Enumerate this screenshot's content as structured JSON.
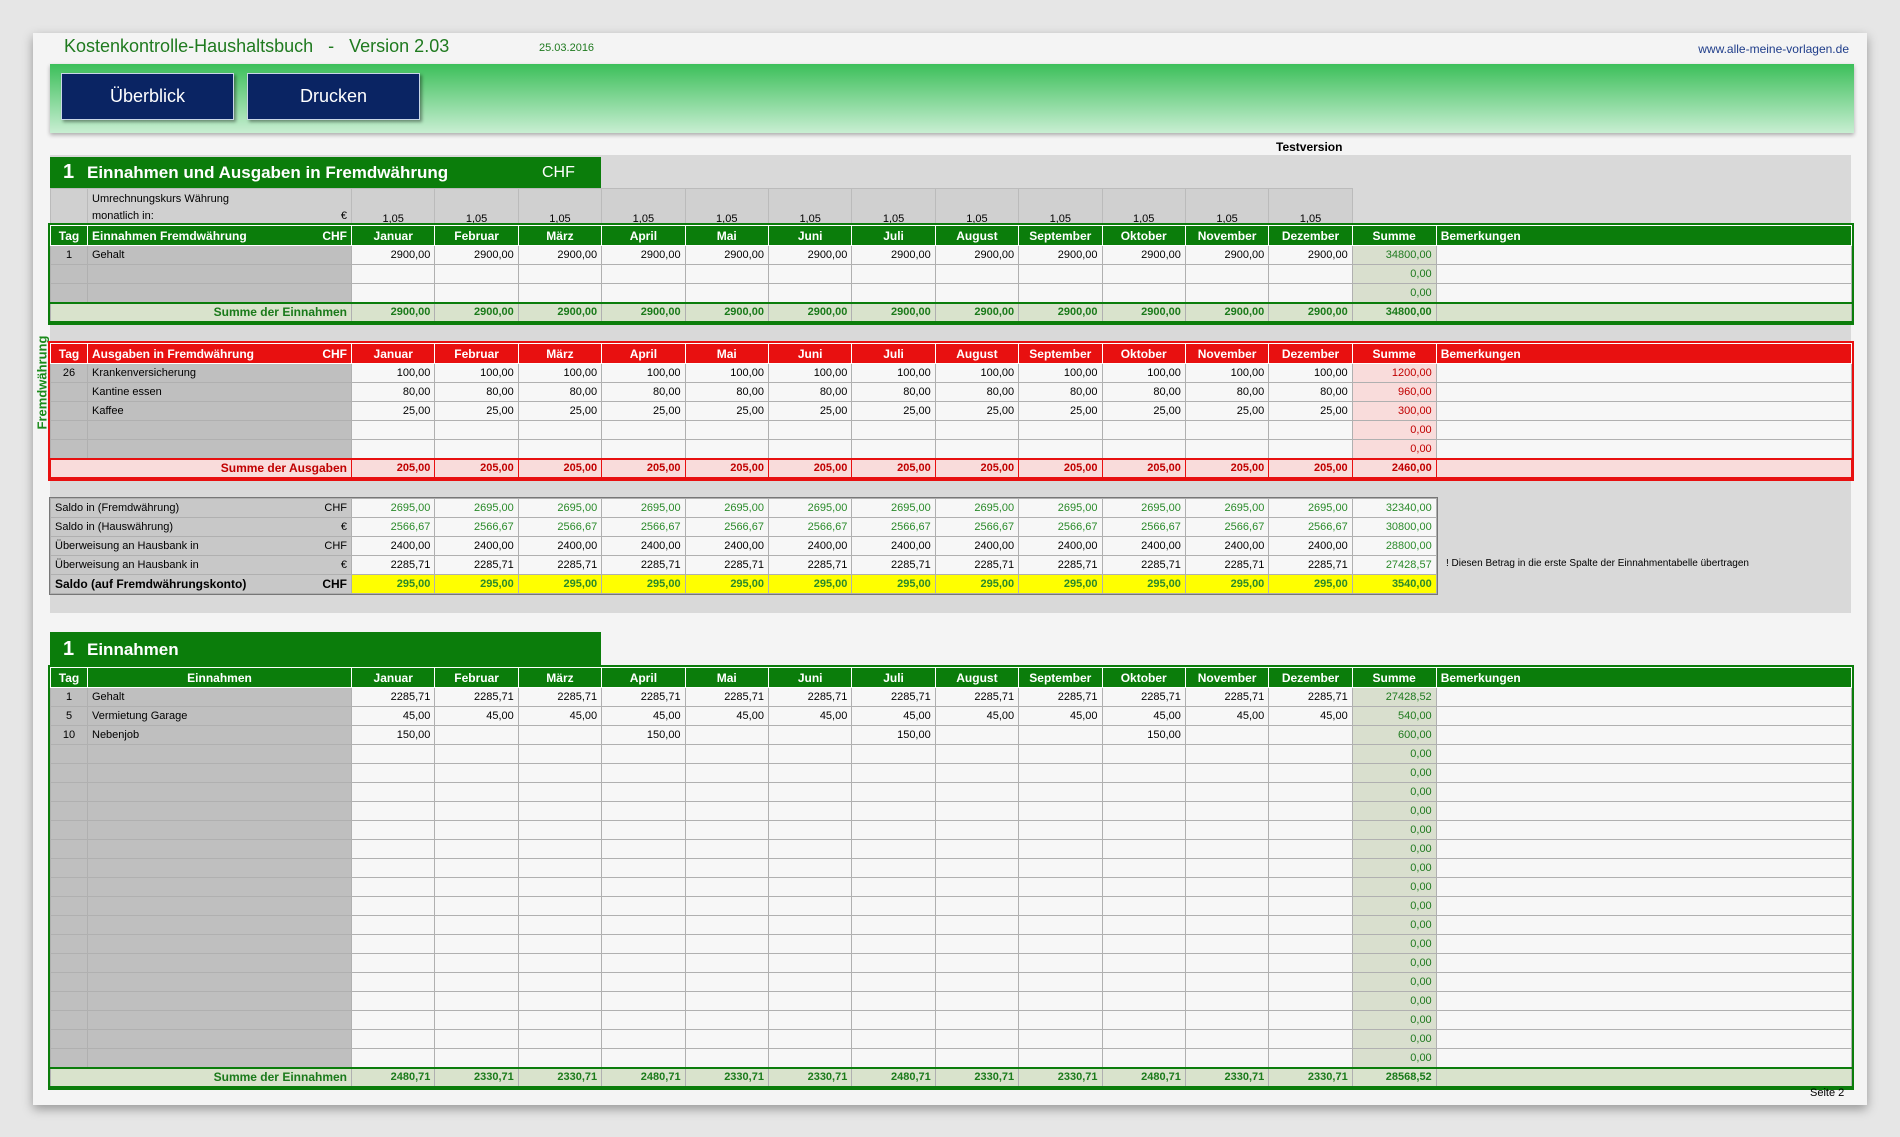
{
  "header": {
    "title": "Kostenkontrolle-Haushaltsbuch   -   Version 2.03",
    "date": "25.03.2016",
    "url": "www.alle-meine-vorlagen.de",
    "buttons": [
      "Überblick",
      "Drucken"
    ],
    "testversion": "Testversion"
  },
  "colors": {
    "green": "#0b7d0b",
    "red": "#e81010",
    "yellow": "#ffff00",
    "navy": "#0a2463"
  },
  "months": [
    "Januar",
    "Februar",
    "März",
    "April",
    "Mai",
    "Juni",
    "Juli",
    "August",
    "September",
    "Oktober",
    "November",
    "Dezember"
  ],
  "summe_label": "Summe",
  "bemerkungen_label": "Bemerkungen",
  "tag_label": "Tag",
  "section1": {
    "number": "1",
    "title": "Einnahmen und Ausgaben in Fremdwährung",
    "currency": "CHF",
    "side_label": "Fremdwährung",
    "rate": {
      "label1": "Umrechnungskurs Währung",
      "label2": "monatlich in:",
      "unit": "€",
      "values": [
        "1,05",
        "1,05",
        "1,05",
        "1,05",
        "1,05",
        "1,05",
        "1,05",
        "1,05",
        "1,05",
        "1,05",
        "1,05",
        "1,05"
      ]
    },
    "income": {
      "title": "Einnahmen Fremdwährung",
      "unit": "CHF",
      "rows": [
        {
          "tag": "1",
          "name": "Gehalt",
          "values": [
            "2900,00",
            "2900,00",
            "2900,00",
            "2900,00",
            "2900,00",
            "2900,00",
            "2900,00",
            "2900,00",
            "2900,00",
            "2900,00",
            "2900,00",
            "2900,00"
          ],
          "sum": "34800,00"
        },
        {
          "tag": "",
          "name": "",
          "values": [],
          "sum": "0,00"
        },
        {
          "tag": "",
          "name": "",
          "values": [],
          "sum": "0,00"
        }
      ],
      "total": {
        "label": "Summe der Einnahmen",
        "values": [
          "2900,00",
          "2900,00",
          "2900,00",
          "2900,00",
          "2900,00",
          "2900,00",
          "2900,00",
          "2900,00",
          "2900,00",
          "2900,00",
          "2900,00",
          "2900,00"
        ],
        "sum": "34800,00"
      }
    },
    "expenses": {
      "title": "Ausgaben in Fremdwährung",
      "unit": "CHF",
      "rows": [
        {
          "tag": "26",
          "name": "Krankenversicherung",
          "values": [
            "100,00",
            "100,00",
            "100,00",
            "100,00",
            "100,00",
            "100,00",
            "100,00",
            "100,00",
            "100,00",
            "100,00",
            "100,00",
            "100,00"
          ],
          "sum": "1200,00"
        },
        {
          "tag": "",
          "name": "Kantine essen",
          "values": [
            "80,00",
            "80,00",
            "80,00",
            "80,00",
            "80,00",
            "80,00",
            "80,00",
            "80,00",
            "80,00",
            "80,00",
            "80,00",
            "80,00"
          ],
          "sum": "960,00"
        },
        {
          "tag": "",
          "name": "Kaffee",
          "values": [
            "25,00",
            "25,00",
            "25,00",
            "25,00",
            "25,00",
            "25,00",
            "25,00",
            "25,00",
            "25,00",
            "25,00",
            "25,00",
            "25,00"
          ],
          "sum": "300,00"
        },
        {
          "tag": "",
          "name": "",
          "values": [],
          "sum": "0,00"
        },
        {
          "tag": "",
          "name": "",
          "values": [],
          "sum": "0,00"
        }
      ],
      "total": {
        "label": "Summe der Ausgaben",
        "values": [
          "205,00",
          "205,00",
          "205,00",
          "205,00",
          "205,00",
          "205,00",
          "205,00",
          "205,00",
          "205,00",
          "205,00",
          "205,00",
          "205,00"
        ],
        "sum": "2460,00"
      }
    },
    "saldo": [
      {
        "name": "Saldo in (Fremdwährung)",
        "unit": "CHF",
        "values": [
          "2695,00",
          "2695,00",
          "2695,00",
          "2695,00",
          "2695,00",
          "2695,00",
          "2695,00",
          "2695,00",
          "2695,00",
          "2695,00",
          "2695,00",
          "2695,00"
        ],
        "sum": "32340,00"
      },
      {
        "name": "Saldo in (Hauswährung)",
        "unit": "€",
        "values": [
          "2566,67",
          "2566,67",
          "2566,67",
          "2566,67",
          "2566,67",
          "2566,67",
          "2566,67",
          "2566,67",
          "2566,67",
          "2566,67",
          "2566,67",
          "2566,67"
        ],
        "sum": "30800,00"
      },
      {
        "name": "Überweisung an Hausbank in",
        "unit": "CHF",
        "values": [
          "2400,00",
          "2400,00",
          "2400,00",
          "2400,00",
          "2400,00",
          "2400,00",
          "2400,00",
          "2400,00",
          "2400,00",
          "2400,00",
          "2400,00",
          "2400,00"
        ],
        "sum": "28800,00"
      },
      {
        "name": "Überweisung an Hausbank in",
        "unit": "€",
        "values": [
          "2285,71",
          "2285,71",
          "2285,71",
          "2285,71",
          "2285,71",
          "2285,71",
          "2285,71",
          "2285,71",
          "2285,71",
          "2285,71",
          "2285,71",
          "2285,71"
        ],
        "sum": "27428,57"
      },
      {
        "name": "Saldo (auf Fremdwährungskonto)",
        "unit": "CHF",
        "values": [
          "295,00",
          "295,00",
          "295,00",
          "295,00",
          "295,00",
          "295,00",
          "295,00",
          "295,00",
          "295,00",
          "295,00",
          "295,00",
          "295,00"
        ],
        "sum": "3540,00"
      }
    ],
    "note": "! Diesen Betrag in die erste Spalte der Einnahmentabelle übertragen"
  },
  "section2": {
    "number": "1",
    "title": "Einnahmen",
    "col_title": "Einnahmen",
    "rows": [
      {
        "tag": "1",
        "name": "Gehalt",
        "values": [
          "2285,71",
          "2285,71",
          "2285,71",
          "2285,71",
          "2285,71",
          "2285,71",
          "2285,71",
          "2285,71",
          "2285,71",
          "2285,71",
          "2285,71",
          "2285,71"
        ],
        "sum": "27428,52"
      },
      {
        "tag": "5",
        "name": "Vermietung Garage",
        "values": [
          "45,00",
          "45,00",
          "45,00",
          "45,00",
          "45,00",
          "45,00",
          "45,00",
          "45,00",
          "45,00",
          "45,00",
          "45,00",
          "45,00"
        ],
        "sum": "540,00"
      },
      {
        "tag": "10",
        "name": "Nebenjob",
        "values": [
          "150,00",
          "",
          "",
          "150,00",
          "",
          "",
          "150,00",
          "",
          "",
          "150,00",
          "",
          ""
        ],
        "sum": "600,00"
      },
      {
        "tag": "",
        "name": "",
        "values": [],
        "sum": "0,00"
      },
      {
        "tag": "",
        "name": "",
        "values": [],
        "sum": "0,00"
      },
      {
        "tag": "",
        "name": "",
        "values": [],
        "sum": "0,00"
      },
      {
        "tag": "",
        "name": "",
        "values": [],
        "sum": "0,00"
      },
      {
        "tag": "",
        "name": "",
        "values": [],
        "sum": "0,00"
      },
      {
        "tag": "",
        "name": "",
        "values": [],
        "sum": "0,00"
      },
      {
        "tag": "",
        "name": "",
        "values": [],
        "sum": "0,00"
      },
      {
        "tag": "",
        "name": "",
        "values": [],
        "sum": "0,00"
      },
      {
        "tag": "",
        "name": "",
        "values": [],
        "sum": "0,00"
      },
      {
        "tag": "",
        "name": "",
        "values": [],
        "sum": "0,00"
      },
      {
        "tag": "",
        "name": "",
        "values": [],
        "sum": "0,00"
      },
      {
        "tag": "",
        "name": "",
        "values": [],
        "sum": "0,00"
      },
      {
        "tag": "",
        "name": "",
        "values": [],
        "sum": "0,00"
      },
      {
        "tag": "",
        "name": "",
        "values": [],
        "sum": "0,00"
      },
      {
        "tag": "",
        "name": "",
        "values": [],
        "sum": "0,00"
      },
      {
        "tag": "",
        "name": "",
        "values": [],
        "sum": "0,00"
      },
      {
        "tag": "",
        "name": "",
        "values": [],
        "sum": "0,00"
      }
    ],
    "total": {
      "label": "Summe der Einnahmen",
      "values": [
        "2480,71",
        "2330,71",
        "2330,71",
        "2480,71",
        "2330,71",
        "2330,71",
        "2480,71",
        "2330,71",
        "2330,71",
        "2480,71",
        "2330,71",
        "2330,71"
      ],
      "sum": "28568,52"
    }
  },
  "footer": {
    "page": "Seite 2"
  }
}
